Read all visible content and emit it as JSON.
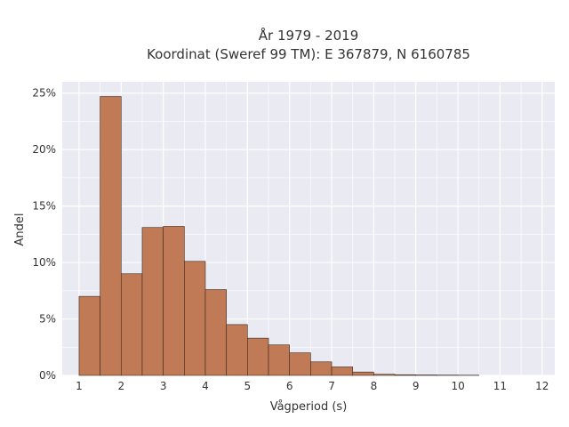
{
  "chart_data": {
    "type": "bar",
    "title": "År 1979 - 2019",
    "subtitle": "Koordinat (Sweref 99 TM): E 367879, N 6160785",
    "xlabel": "Vågperiod (s)",
    "ylabel": "Andel",
    "xlim": [
      0.6,
      12.3
    ],
    "ylim": [
      0,
      0.26
    ],
    "x_ticks": [
      "1",
      "2",
      "3",
      "4",
      "5",
      "6",
      "7",
      "8",
      "9",
      "10",
      "11",
      "12"
    ],
    "y_ticks": [
      "0%",
      "5%",
      "10%",
      "15%",
      "20%",
      "25%"
    ],
    "bin_width": 0.5,
    "bins_start": [
      1.0,
      1.5,
      2.0,
      2.5,
      3.0,
      3.5,
      4.0,
      4.5,
      5.0,
      5.5,
      6.0,
      6.5,
      7.0,
      7.5,
      8.0,
      8.5,
      9.0,
      9.5,
      10.0
    ],
    "values": [
      0.07,
      0.247,
      0.09,
      0.131,
      0.132,
      0.101,
      0.076,
      0.045,
      0.033,
      0.027,
      0.02,
      0.012,
      0.0075,
      0.003,
      0.001,
      0.0006,
      0.0004,
      0.0003,
      0.0002
    ],
    "grid": true,
    "colors": {
      "bar": "#c07a55",
      "bar_edge": "#3a2a20",
      "plot_bg": "#eaeaf2",
      "grid": "#ffffff"
    }
  }
}
